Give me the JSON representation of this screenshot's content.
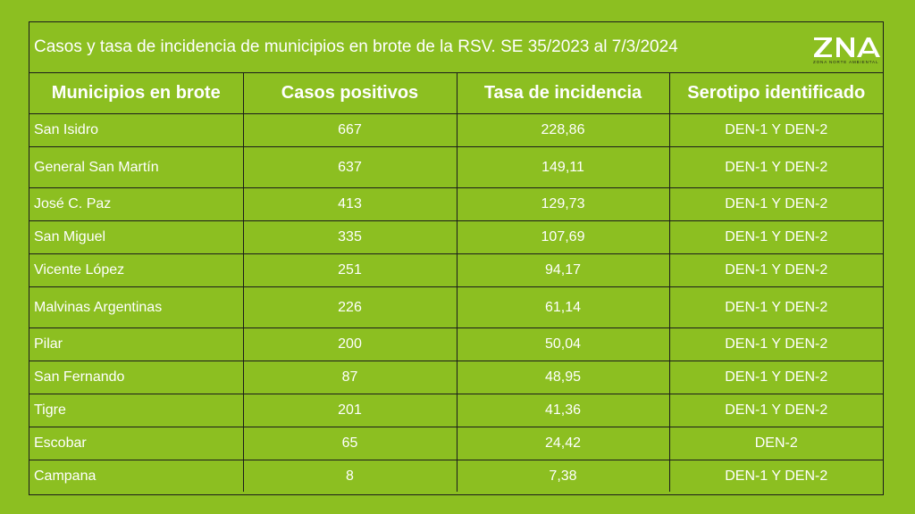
{
  "title": "Casos y tasa de incidencia de municipios en brote de la RSV. SE 35/2023 al 7/3/2024",
  "logo": {
    "text": "ZNA",
    "subtitle": "ZONA NORTE AMBIENTAL",
    "color": "#ffffff",
    "subtitle_color": "#1d1d1d"
  },
  "colors": {
    "background": "#8cbf21",
    "border": "#1b1b1b",
    "text": "#ffffff"
  },
  "table": {
    "headers": [
      "Municipios en brote",
      "Casos positivos",
      "Tasa de incidencia",
      "Serotipo identificado"
    ],
    "rows": [
      {
        "municipio": "San Isidro",
        "casos": "667",
        "tasa": "228,86",
        "serotipo": "DEN-1 Y DEN-2"
      },
      {
        "municipio": "General San Martín",
        "casos": "637",
        "tasa": "149,11",
        "serotipo": "DEN-1 Y DEN-2"
      },
      {
        "municipio": "José C. Paz",
        "casos": "413",
        "tasa": "129,73",
        "serotipo": "DEN-1 Y DEN-2"
      },
      {
        "municipio": "San Miguel",
        "casos": "335",
        "tasa": "107,69",
        "serotipo": "DEN-1 Y DEN-2"
      },
      {
        "municipio": "Vicente López",
        "casos": "251",
        "tasa": "94,17",
        "serotipo": "DEN-1 Y DEN-2"
      },
      {
        "municipio": "Malvinas Argentinas",
        "casos": "226",
        "tasa": "61,14",
        "serotipo": "DEN-1 Y DEN-2"
      },
      {
        "municipio": "Pilar",
        "casos": "200",
        "tasa": "50,04",
        "serotipo": "DEN-1 Y DEN-2"
      },
      {
        "municipio": "San Fernando",
        "casos": "87",
        "tasa": "48,95",
        "serotipo": "DEN-1 Y DEN-2"
      },
      {
        "municipio": "Tigre",
        "casos": "201",
        "tasa": "41,36",
        "serotipo": "DEN-1 Y DEN-2"
      },
      {
        "municipio": "Escobar",
        "casos": "65",
        "tasa": "24,42",
        "serotipo": "DEN-2"
      },
      {
        "municipio": "Campana",
        "casos": "8",
        "tasa": "7,38",
        "serotipo": "DEN-1 Y DEN-2"
      }
    ]
  }
}
